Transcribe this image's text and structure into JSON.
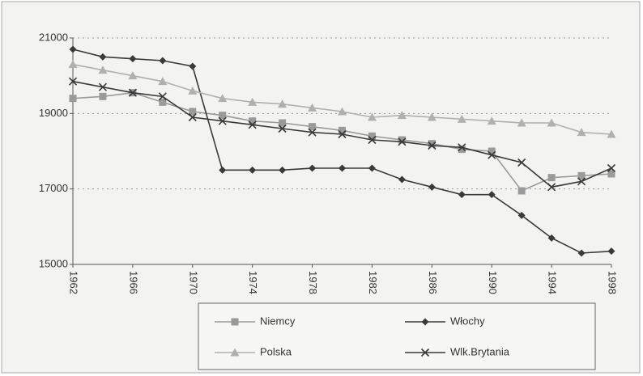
{
  "chart_data": {
    "type": "line",
    "x": [
      1962,
      1964,
      1966,
      1968,
      1970,
      1972,
      1974,
      1976,
      1978,
      1980,
      1982,
      1984,
      1986,
      1988,
      1990,
      1992,
      1994,
      1996,
      1998
    ],
    "series": [
      {
        "name": "Niemcy",
        "color": "#9a9a9a",
        "marker": "square",
        "values": [
          19400,
          19450,
          19550,
          19300,
          19050,
          18950,
          18800,
          18750,
          18650,
          18550,
          18400,
          18300,
          18200,
          18050,
          18000,
          16950,
          17300,
          17350,
          17400
        ]
      },
      {
        "name": "Włochy",
        "color": "#3a3a3a",
        "marker": "diamond",
        "values": [
          20700,
          20500,
          20450,
          20400,
          20250,
          17500,
          17500,
          17500,
          17550,
          17550,
          17550,
          17250,
          17050,
          16850,
          16850,
          16300,
          15700,
          15300,
          15350
        ]
      },
      {
        "name": "Polska",
        "color": "#b0b0b0",
        "marker": "triangle",
        "values": [
          20300,
          20150,
          20000,
          19850,
          19600,
          19400,
          19300,
          19250,
          19150,
          19050,
          18900,
          18950,
          18900,
          18850,
          18800,
          18750,
          18750,
          18500,
          18450
        ]
      },
      {
        "name": "Wlk.Brytania",
        "color": "#3a3a3a",
        "marker": "x",
        "values": [
          19850,
          19700,
          19550,
          19450,
          18900,
          18800,
          18700,
          18600,
          18500,
          18450,
          18300,
          18250,
          18150,
          18100,
          17900,
          17700,
          17050,
          17200,
          17550
        ]
      }
    ],
    "xlim": [
      1962,
      1998
    ],
    "xticks": [
      1962,
      1966,
      1970,
      1974,
      1978,
      1982,
      1986,
      1990,
      1994,
      1998
    ],
    "ylim": [
      15000,
      21000
    ],
    "yticks": [
      15000,
      17000,
      19000,
      21000
    ],
    "grid": true,
    "legend": "bottom"
  }
}
